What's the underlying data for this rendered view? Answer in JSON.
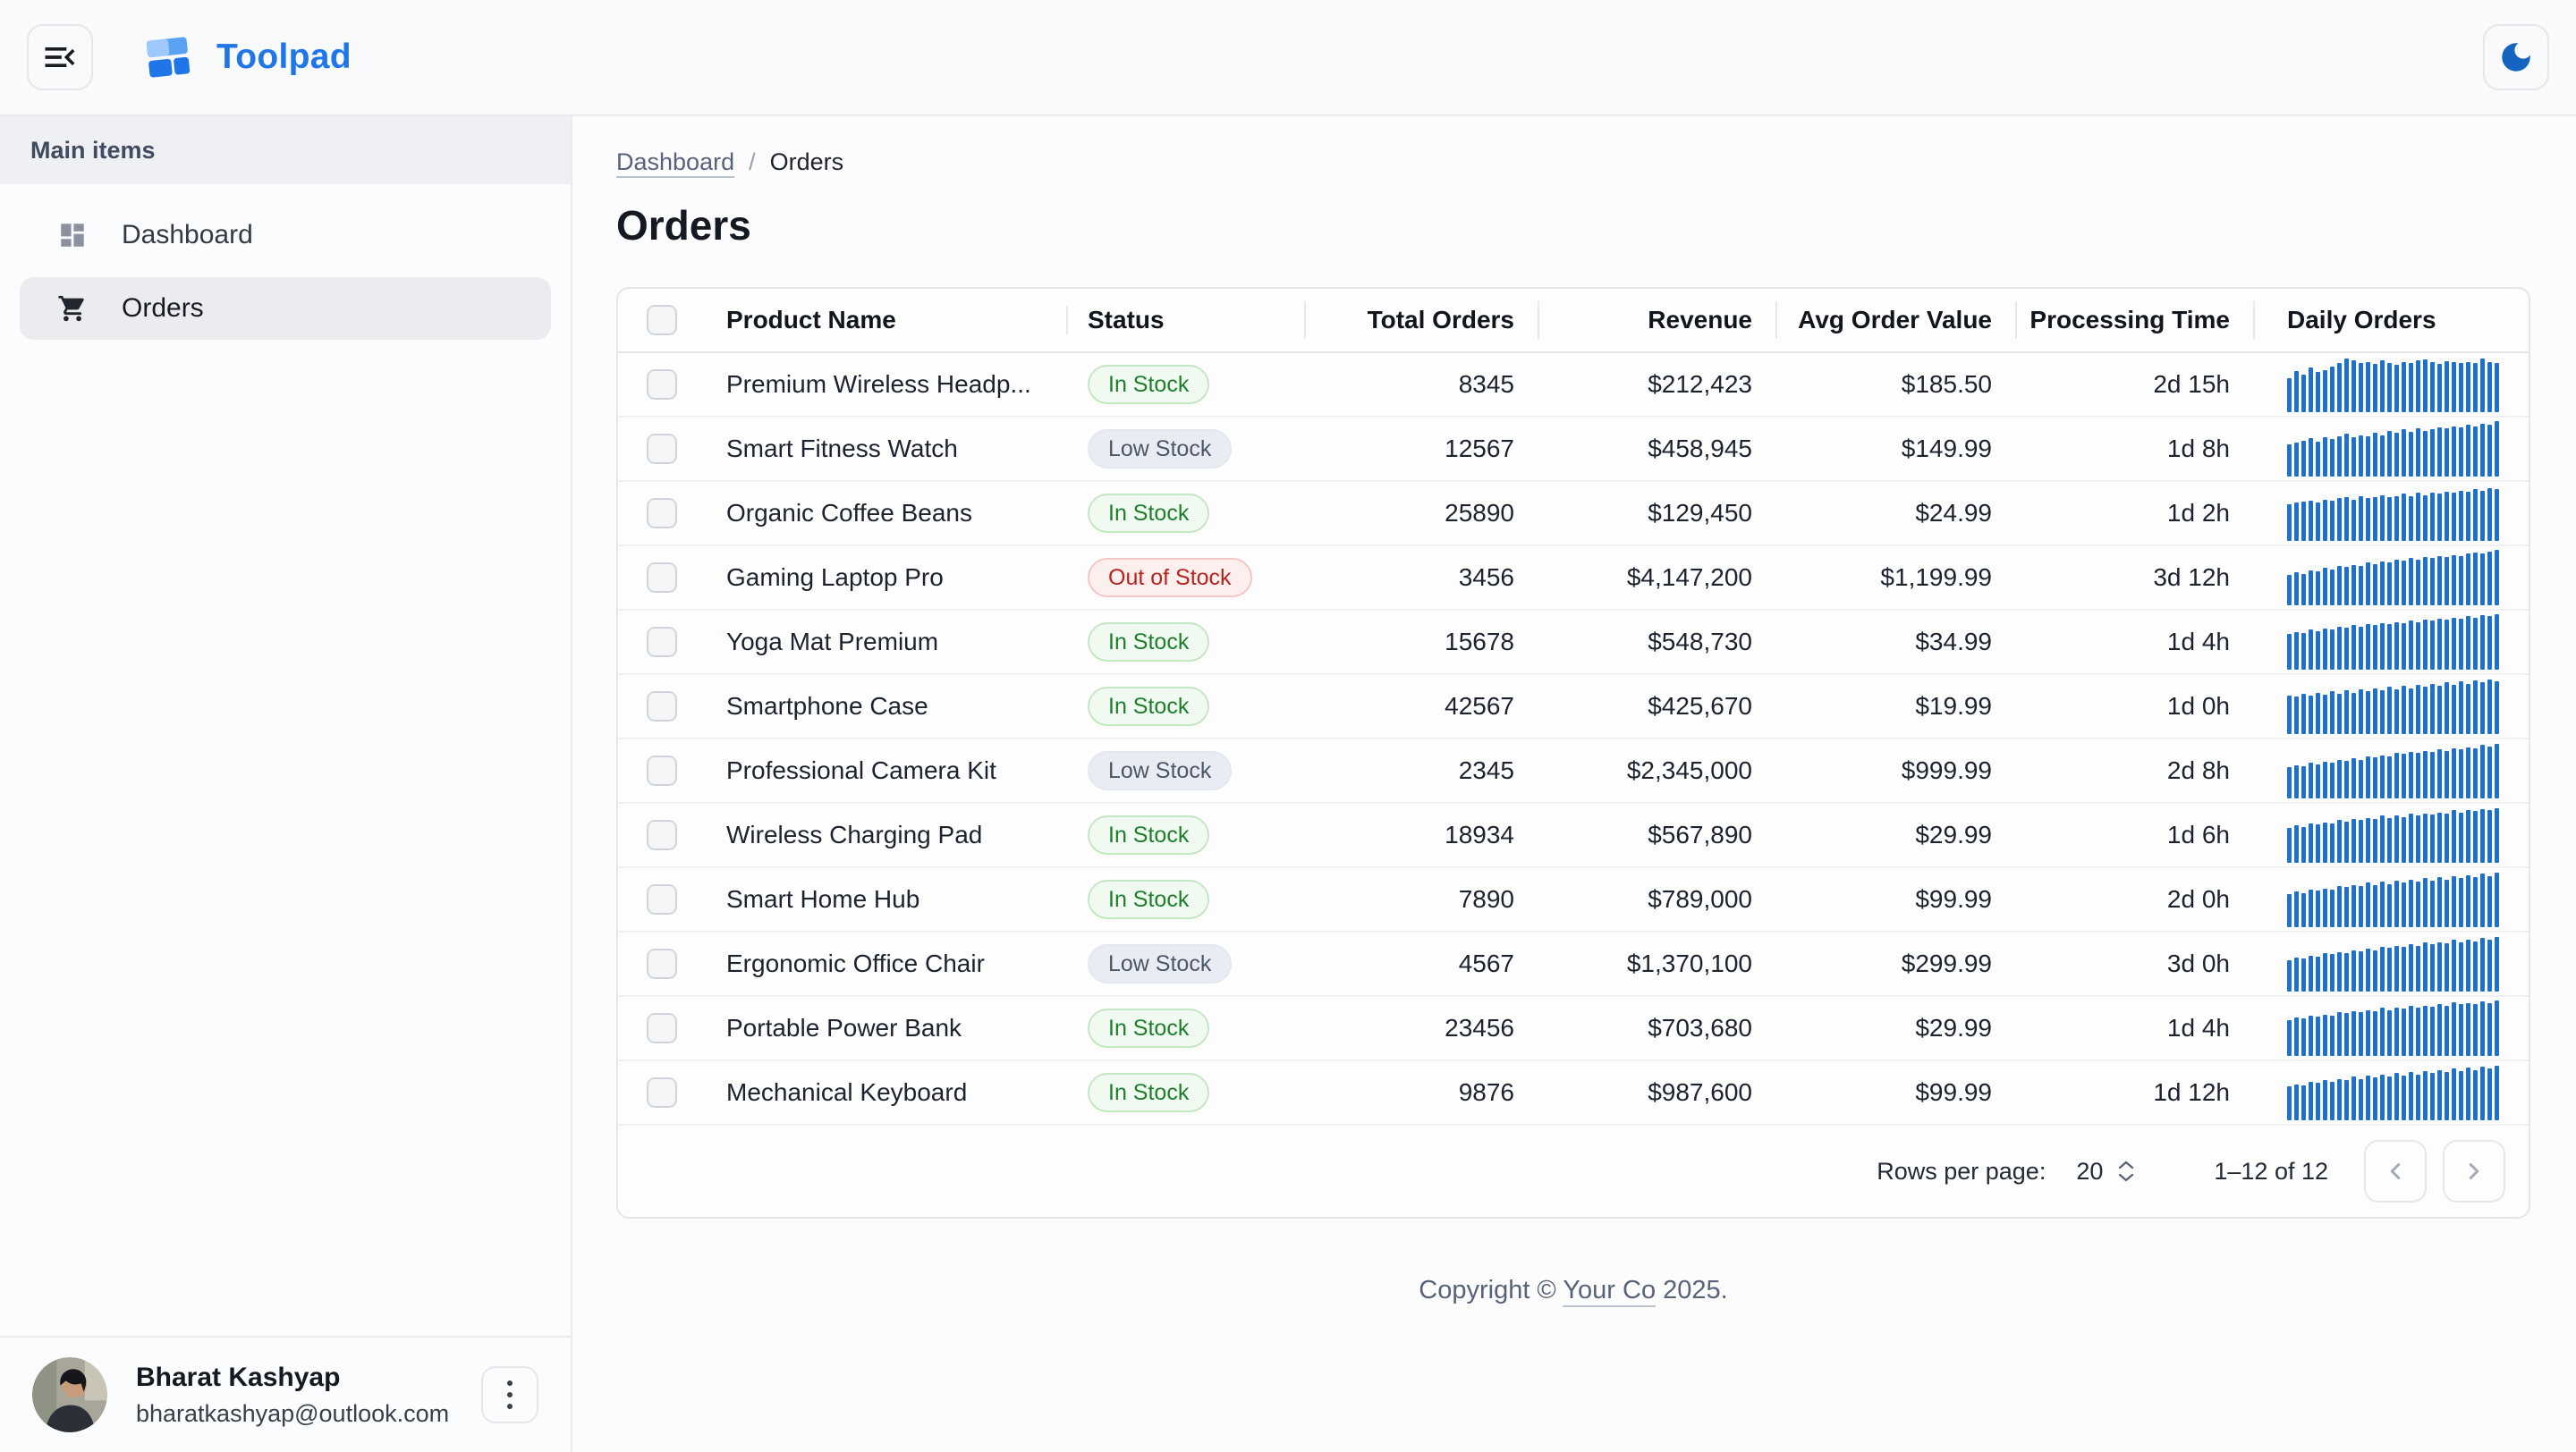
{
  "header": {
    "brand": "Toolpad"
  },
  "sidebar": {
    "section_label": "Main items",
    "items": [
      {
        "label": "Dashboard",
        "icon": "dashboard-icon",
        "selected": false
      },
      {
        "label": "Orders",
        "icon": "cart-icon",
        "selected": true
      }
    ]
  },
  "breadcrumb": {
    "parent": "Dashboard",
    "separator": "/",
    "current": "Orders"
  },
  "page": {
    "title": "Orders"
  },
  "table": {
    "columns": {
      "product": "Product Name",
      "status": "Status",
      "total_orders": "Total Orders",
      "revenue": "Revenue",
      "avg_order_value": "Avg Order Value",
      "processing_time": "Processing Time",
      "daily_orders": "Daily Orders"
    },
    "rows": [
      {
        "product": "Premium Wireless Headp...",
        "status": "In Stock",
        "status_key": "in_stock",
        "total_orders": "8345",
        "revenue": "$212,423",
        "avg_order_value": "$185.50",
        "processing_time": "2d 15h",
        "daily_orders": [
          62,
          74,
          68,
          80,
          72,
          76,
          82,
          88,
          97,
          93,
          88,
          91,
          87,
          93,
          89,
          86,
          91,
          88,
          93,
          95,
          90,
          87,
          92,
          90,
          88,
          91,
          89,
          96,
          91,
          88
        ]
      },
      {
        "product": "Smart Fitness Watch",
        "status": "Low Stock",
        "status_key": "low_stock",
        "total_orders": "12567",
        "revenue": "$458,945",
        "avg_order_value": "$149.99",
        "processing_time": "1d 8h",
        "daily_orders": [
          58,
          62,
          65,
          69,
          63,
          71,
          67,
          73,
          77,
          71,
          75,
          73,
          79,
          75,
          83,
          79,
          85,
          81,
          87,
          83,
          85,
          89,
          87,
          91,
          89,
          93,
          91,
          95,
          93,
          100
        ]
      },
      {
        "product": "Organic Coffee Beans",
        "status": "In Stock",
        "status_key": "in_stock",
        "total_orders": "25890",
        "revenue": "$129,450",
        "avg_order_value": "$24.99",
        "processing_time": "1d 2h",
        "daily_orders": [
          66,
          69,
          71,
          73,
          70,
          75,
          72,
          77,
          79,
          75,
          81,
          77,
          79,
          83,
          79,
          81,
          85,
          81,
          87,
          83,
          87,
          85,
          89,
          87,
          91,
          89,
          93,
          91,
          95,
          93
        ]
      },
      {
        "product": "Gaming Laptop Pro",
        "status": "Out of Stock",
        "status_key": "out_of_stock",
        "total_orders": "3456",
        "revenue": "$4,147,200",
        "avg_order_value": "$1,199.99",
        "processing_time": "3d 12h",
        "daily_orders": [
          55,
          59,
          57,
          63,
          61,
          67,
          65,
          71,
          69,
          73,
          71,
          77,
          75,
          79,
          77,
          83,
          81,
          85,
          83,
          87,
          85,
          89,
          87,
          91,
          89,
          93,
          95,
          93,
          97,
          100
        ]
      },
      {
        "product": "Yoga Mat Premium",
        "status": "In Stock",
        "status_key": "in_stock",
        "total_orders": "15678",
        "revenue": "$548,730",
        "avg_order_value": "$34.99",
        "processing_time": "1d 4h",
        "daily_orders": [
          64,
          68,
          66,
          72,
          70,
          74,
          72,
          78,
          76,
          80,
          78,
          82,
          80,
          84,
          82,
          86,
          84,
          88,
          86,
          90,
          88,
          92,
          90,
          94,
          92,
          96,
          94,
          98,
          96,
          100
        ]
      },
      {
        "product": "Smartphone Case",
        "status": "In Stock",
        "status_key": "in_stock",
        "total_orders": "42567",
        "revenue": "$425,670",
        "avg_order_value": "$19.99",
        "processing_time": "1d 0h",
        "daily_orders": [
          70,
          67,
          73,
          69,
          75,
          71,
          77,
          73,
          79,
          75,
          81,
          77,
          83,
          79,
          85,
          81,
          87,
          83,
          89,
          85,
          91,
          87,
          93,
          89,
          95,
          91,
          97,
          93,
          99,
          95
        ]
      },
      {
        "product": "Professional Camera Kit",
        "status": "Low Stock",
        "status_key": "low_stock",
        "total_orders": "2345",
        "revenue": "$2,345,000",
        "avg_order_value": "$999.99",
        "processing_time": "2d 8h",
        "daily_orders": [
          56,
          60,
          58,
          64,
          62,
          66,
          64,
          70,
          68,
          72,
          70,
          76,
          74,
          78,
          76,
          82,
          80,
          84,
          82,
          86,
          84,
          88,
          86,
          90,
          88,
          92,
          90,
          96,
          94,
          98
        ]
      },
      {
        "product": "Wireless Charging Pad",
        "status": "In Stock",
        "status_key": "in_stock",
        "total_orders": "18934",
        "revenue": "$567,890",
        "avg_order_value": "$29.99",
        "processing_time": "1d 6h",
        "daily_orders": [
          63,
          67,
          65,
          71,
          69,
          73,
          71,
          77,
          75,
          79,
          77,
          81,
          79,
          85,
          81,
          85,
          83,
          89,
          85,
          89,
          87,
          91,
          89,
          95,
          91,
          95,
          93,
          97,
          95,
          99
        ]
      },
      {
        "product": "Smart Home Hub",
        "status": "In Stock",
        "status_key": "in_stock",
        "total_orders": "7890",
        "revenue": "$789,000",
        "avg_order_value": "$99.99",
        "processing_time": "2d 0h",
        "daily_orders": [
          60,
          64,
          62,
          68,
          66,
          70,
          68,
          74,
          72,
          76,
          74,
          80,
          76,
          82,
          78,
          84,
          80,
          86,
          82,
          88,
          84,
          90,
          86,
          92,
          88,
          94,
          90,
          96,
          92,
          98
        ]
      },
      {
        "product": "Ergonomic Office Chair",
        "status": "Low Stock",
        "status_key": "low_stock",
        "total_orders": "4567",
        "revenue": "$1,370,100",
        "avg_order_value": "$299.99",
        "processing_time": "3d 0h",
        "daily_orders": [
          57,
          61,
          59,
          65,
          63,
          69,
          67,
          71,
          69,
          75,
          73,
          77,
          75,
          81,
          79,
          83,
          81,
          85,
          83,
          89,
          85,
          89,
          87,
          93,
          89,
          93,
          91,
          97,
          93,
          99
        ]
      },
      {
        "product": "Portable Power Bank",
        "status": "In Stock",
        "status_key": "in_stock",
        "total_orders": "23456",
        "revenue": "$703,680",
        "avg_order_value": "$29.99",
        "processing_time": "1d 4h",
        "daily_orders": [
          65,
          69,
          67,
          73,
          71,
          75,
          73,
          79,
          77,
          81,
          79,
          83,
          81,
          87,
          83,
          87,
          85,
          91,
          87,
          91,
          89,
          93,
          91,
          97,
          93,
          95,
          93,
          99,
          95,
          100
        ]
      },
      {
        "product": "Mechanical Keyboard",
        "status": "In Stock",
        "status_key": "in_stock",
        "total_orders": "9876",
        "revenue": "$987,600",
        "avg_order_value": "$99.99",
        "processing_time": "1d 12h",
        "daily_orders": [
          61,
          65,
          63,
          69,
          67,
          73,
          69,
          75,
          73,
          79,
          75,
          81,
          77,
          83,
          79,
          85,
          81,
          87,
          83,
          89,
          85,
          91,
          87,
          93,
          89,
          95,
          91,
          97,
          93,
          99
        ]
      }
    ]
  },
  "pagination": {
    "rows_per_page_label": "Rows per page:",
    "rows_per_page": "20",
    "range": "1–12 of 12"
  },
  "footer": {
    "prefix": "Copyright © ",
    "link": "Your Co",
    "suffix": " 2025."
  },
  "user": {
    "name": "Bharat Kashyap",
    "email": "bharatkashyap@outlook.com"
  },
  "colors": {
    "brand_blue": "#1f76e8",
    "sparkline_bar": "#1d6fd2",
    "in_stock": "#1e7e2e",
    "low_stock": "#4b5768",
    "out_of_stock": "#b3251d"
  }
}
